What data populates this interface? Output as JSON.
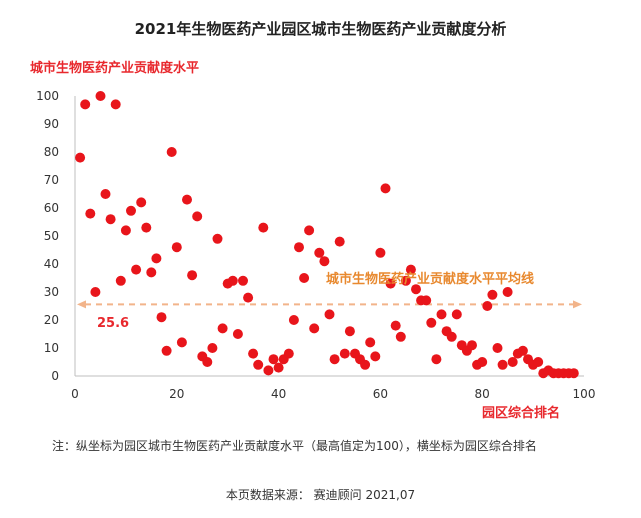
{
  "chart_data": {
    "type": "scatter",
    "title": "2021年生物医药产业园区城市生物医药产业贡献度分析",
    "ylabel": "城市生物医药产业贡献度水平",
    "xlabel": "园区综合排名",
    "xlim": [
      0,
      100
    ],
    "ylim": [
      0,
      100
    ],
    "xticks": [
      "0",
      "20",
      "40",
      "60",
      "80",
      "100"
    ],
    "yticks": [
      "0",
      "10",
      "20",
      "30",
      "40",
      "50",
      "60",
      "70",
      "80",
      "90",
      "100"
    ],
    "grid": false,
    "marker_color": "#e8151b",
    "average": {
      "label": "城市生物医药产业贡献度水平平均线",
      "value": 25.6,
      "value_text": "25.6",
      "color": "#f2b48a"
    },
    "points": [
      [
        1,
        78
      ],
      [
        2,
        97
      ],
      [
        3,
        58
      ],
      [
        4,
        30
      ],
      [
        5,
        100
      ],
      [
        6,
        65
      ],
      [
        7,
        56
      ],
      [
        8,
        97
      ],
      [
        9,
        34
      ],
      [
        10,
        52
      ],
      [
        11,
        59
      ],
      [
        12,
        38
      ],
      [
        13,
        62
      ],
      [
        14,
        53
      ],
      [
        15,
        37
      ],
      [
        16,
        42
      ],
      [
        17,
        21
      ],
      [
        18,
        9
      ],
      [
        19,
        80
      ],
      [
        20,
        46
      ],
      [
        21,
        12
      ],
      [
        22,
        63
      ],
      [
        23,
        36
      ],
      [
        24,
        57
      ],
      [
        25,
        7
      ],
      [
        26,
        5
      ],
      [
        27,
        10
      ],
      [
        28,
        49
      ],
      [
        29,
        17
      ],
      [
        30,
        33
      ],
      [
        31,
        34
      ],
      [
        32,
        15
      ],
      [
        33,
        34
      ],
      [
        34,
        28
      ],
      [
        35,
        8
      ],
      [
        36,
        4
      ],
      [
        37,
        53
      ],
      [
        38,
        2
      ],
      [
        39,
        6
      ],
      [
        40,
        3
      ],
      [
        41,
        6
      ],
      [
        42,
        8
      ],
      [
        43,
        20
      ],
      [
        44,
        46
      ],
      [
        45,
        35
      ],
      [
        46,
        52
      ],
      [
        47,
        17
      ],
      [
        48,
        44
      ],
      [
        49,
        41
      ],
      [
        50,
        22
      ],
      [
        51,
        6
      ],
      [
        52,
        48
      ],
      [
        53,
        8
      ],
      [
        54,
        16
      ],
      [
        55,
        8
      ],
      [
        56,
        6
      ],
      [
        57,
        4
      ],
      [
        58,
        12
      ],
      [
        59,
        7
      ],
      [
        60,
        44
      ],
      [
        61,
        67
      ],
      [
        62,
        33
      ],
      [
        63,
        18
      ],
      [
        64,
        14
      ],
      [
        65,
        34
      ],
      [
        66,
        38
      ],
      [
        67,
        31
      ],
      [
        68,
        27
      ],
      [
        69,
        27
      ],
      [
        70,
        19
      ],
      [
        71,
        6
      ],
      [
        72,
        22
      ],
      [
        73,
        16
      ],
      [
        74,
        14
      ],
      [
        75,
        22
      ],
      [
        76,
        11
      ],
      [
        77,
        9
      ],
      [
        78,
        11
      ],
      [
        79,
        4
      ],
      [
        80,
        5
      ],
      [
        81,
        25
      ],
      [
        82,
        29
      ],
      [
        83,
        10
      ],
      [
        84,
        4
      ],
      [
        85,
        30
      ],
      [
        86,
        5
      ],
      [
        87,
        8
      ],
      [
        88,
        9
      ],
      [
        89,
        6
      ],
      [
        90,
        4
      ],
      [
        91,
        5
      ],
      [
        92,
        1
      ],
      [
        93,
        2
      ],
      [
        94,
        1
      ],
      [
        95,
        1
      ],
      [
        96,
        1
      ],
      [
        97,
        1
      ],
      [
        98,
        1
      ]
    ]
  },
  "footnote": "注：纵坐标为园区城市生物医药产业贡献度水平（最高值定为100），横坐标为园区综合排名",
  "source": "本页数据来源： 赛迪顾问 2021,07"
}
